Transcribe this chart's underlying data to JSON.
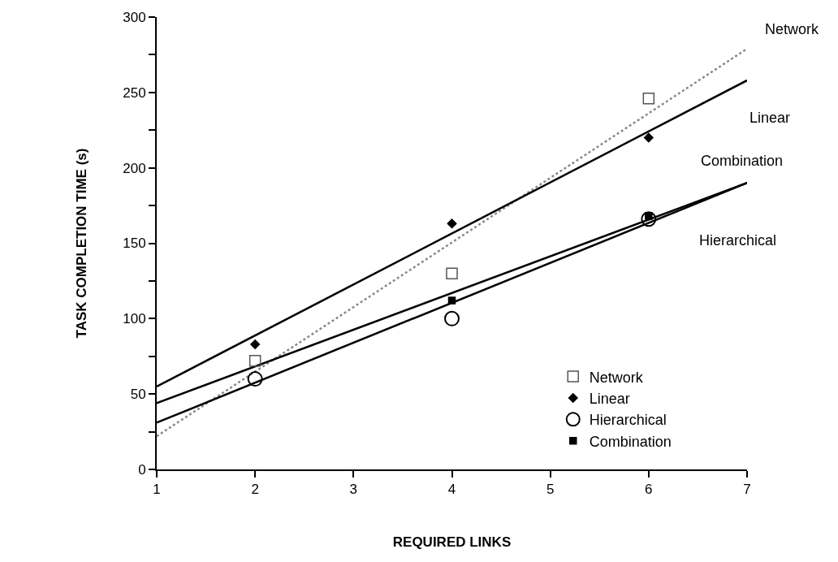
{
  "chart_data": {
    "type": "scatter",
    "xlabel": "REQUIRED LINKS",
    "ylabel": "TASK COMPLETION TIME (s)",
    "xlim": [
      1,
      7
    ],
    "ylim": [
      0,
      300
    ],
    "xticks": [
      1,
      2,
      3,
      4,
      5,
      6,
      7
    ],
    "yticks": [
      0,
      {
        "value": 25,
        "label": null
      },
      50,
      {
        "value": 75,
        "label": null
      },
      100,
      {
        "value": 125,
        "label": null
      },
      150,
      {
        "value": 175,
        "label": null
      },
      200,
      {
        "value": 225,
        "label": null
      },
      250,
      {
        "value": 275,
        "label": null
      },
      300
    ],
    "legend": "bottom right",
    "series": [
      {
        "name": "Network",
        "marker": "square",
        "color": "#555555",
        "x": [
          2,
          4,
          6
        ],
        "values": [
          72,
          130,
          246
        ]
      },
      {
        "name": "Linear",
        "marker": "diamond",
        "color": "#000000",
        "x": [
          2,
          4,
          6
        ],
        "values": [
          83,
          163,
          220
        ]
      },
      {
        "name": "Hierarchical",
        "marker": "circle",
        "color": "#000000",
        "x": [
          2,
          4,
          6
        ],
        "values": [
          60,
          100,
          166
        ]
      },
      {
        "name": "Combination",
        "marker": "square",
        "color": "#000000",
        "x": [
          4,
          6
        ],
        "values": [
          112,
          168
        ]
      },
      {
        "name": "Network",
        "type": "line",
        "line_style": "dotted",
        "color": "#888888",
        "x": [
          1,
          7
        ],
        "values": [
          22,
          279
        ]
      },
      {
        "name": "Linear",
        "type": "line",
        "color": "#000000",
        "x": [
          1,
          7
        ],
        "values": [
          55,
          258
        ]
      },
      {
        "name": "Combination",
        "type": "line",
        "color": "#000000",
        "x": [
          1,
          7
        ],
        "values": [
          44,
          190
        ]
      },
      {
        "name": "Hierarchical",
        "type": "line",
        "color": "#000000",
        "x": [
          1,
          7
        ],
        "values": [
          31,
          190
        ]
      }
    ]
  }
}
